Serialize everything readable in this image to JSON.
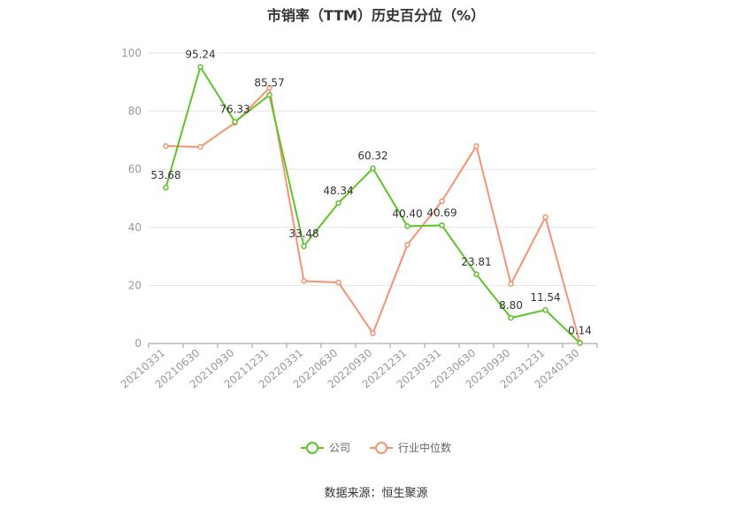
{
  "title": "市销率（TTM）历史百分位（%）",
  "source": "数据来源：恒生聚源",
  "colors": {
    "company": "#5ec42a",
    "industry": "#f59372",
    "grid": "#e6e6e6",
    "axis": "#999999",
    "tick": "#999999",
    "label": "#333333"
  },
  "chart_data": {
    "type": "line",
    "title": "市销率（TTM）历史百分位（%）",
    "categories": [
      "20210331",
      "20210630",
      "20210930",
      "20211231",
      "20220331",
      "20220630",
      "20220930",
      "20221231",
      "20230331",
      "20230630",
      "20230930",
      "20231231",
      "20240130"
    ],
    "ylim": [
      0,
      100
    ],
    "yticks": [
      0,
      20,
      40,
      60,
      80,
      100
    ],
    "grid": true,
    "legend_position": "bottom",
    "series": [
      {
        "name": "公司",
        "color": "#5ec42a",
        "values": [
          53.68,
          95.24,
          76.33,
          85.57,
          33.48,
          48.34,
          60.32,
          40.4,
          40.69,
          23.81,
          8.8,
          11.54,
          0.14
        ],
        "labels": [
          "53.68",
          "95.24",
          "76.33",
          "85.57",
          "33.48",
          "48.34",
          "60.32",
          "40.40",
          "40.69",
          "23.81",
          "8.80",
          "11.54",
          "0.14"
        ]
      },
      {
        "name": "行业中位数",
        "color": "#f59372",
        "values": [
          68.0,
          67.7,
          76.0,
          88.0,
          21.5,
          21.0,
          3.5,
          34.0,
          49.0,
          68.0,
          20.5,
          43.5,
          0.3
        ]
      }
    ]
  }
}
